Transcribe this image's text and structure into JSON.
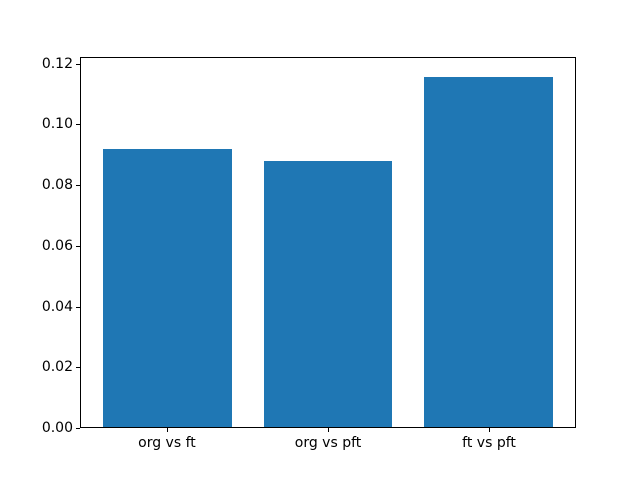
{
  "chart_data": {
    "type": "bar",
    "title": "",
    "xlabel": "",
    "ylabel": "",
    "categories": [
      "org vs ft",
      "org vs pft",
      "ft vs pft"
    ],
    "values": [
      0.092,
      0.088,
      0.116
    ],
    "yticks": [
      0.0,
      0.02,
      0.04,
      0.06,
      0.08,
      0.1,
      0.12
    ],
    "ytick_labels": [
      "0.00",
      "0.02",
      "0.04",
      "0.06",
      "0.08",
      "0.10",
      "0.12"
    ],
    "ylim": [
      0,
      0.1222
    ],
    "xlim": [
      -0.54,
      2.54
    ],
    "bar_width_units": 0.8,
    "bar_color": "#1f77b4",
    "axes_edge_color": "#000000",
    "background_color": "#ffffff",
    "grid": false,
    "legend": null
  }
}
